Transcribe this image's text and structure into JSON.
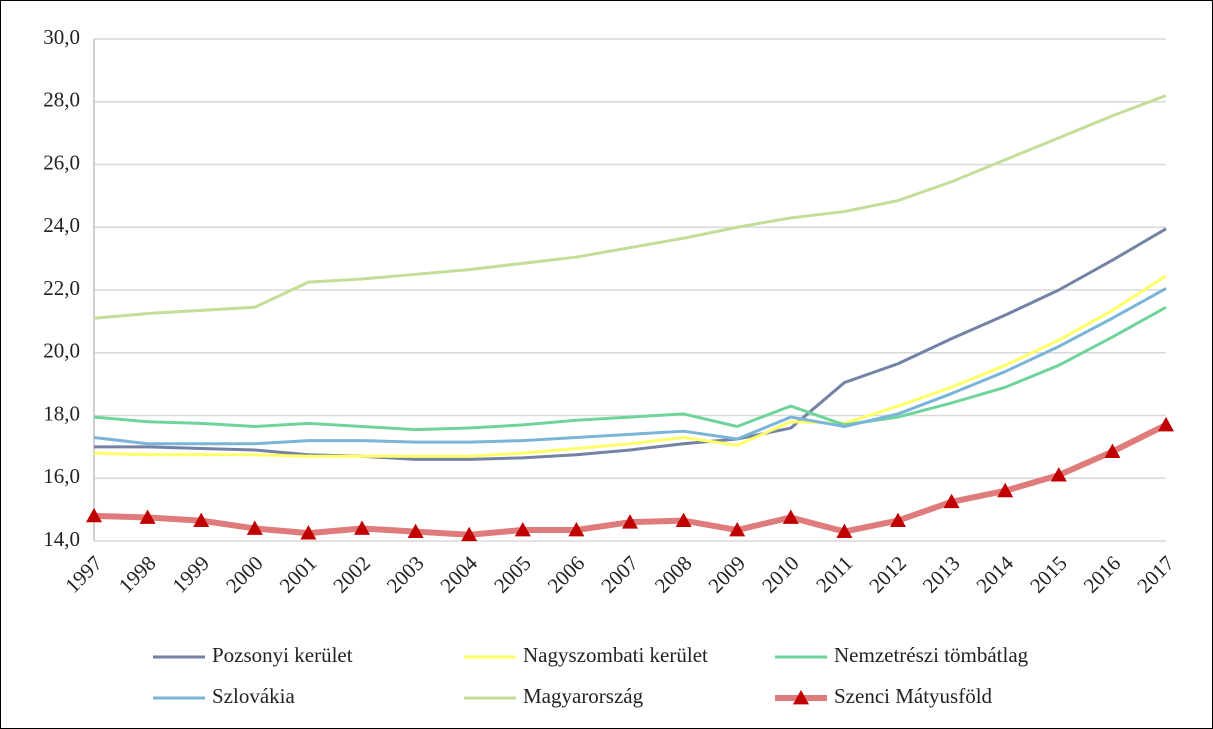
{
  "chart_data": {
    "type": "line",
    "categories": [
      "1997",
      "1998",
      "1999",
      "2000",
      "2001",
      "2002",
      "2003",
      "2004",
      "2005",
      "2006",
      "2007",
      "2008",
      "2009",
      "2010",
      "2011",
      "2012",
      "2013",
      "2014",
      "2015",
      "2016",
      "2017"
    ],
    "ylim": [
      14,
      30
    ],
    "yticks": [
      {
        "value": 14,
        "label": "14,0"
      },
      {
        "value": 16,
        "label": "16,0"
      },
      {
        "value": 18,
        "label": "18,0"
      },
      {
        "value": 20,
        "label": "20,0"
      },
      {
        "value": 22,
        "label": "22,0"
      },
      {
        "value": 24,
        "label": "24,0"
      },
      {
        "value": 26,
        "label": "26,0"
      },
      {
        "value": 28,
        "label": "28,0"
      },
      {
        "value": 30,
        "label": "30,0"
      }
    ],
    "grid": true,
    "series": [
      {
        "name": "Pozsonyi kerület",
        "color": "#7482a6",
        "values": [
          17.0,
          17.0,
          16.95,
          16.9,
          16.75,
          16.7,
          16.6,
          16.6,
          16.65,
          16.75,
          16.9,
          17.1,
          17.25,
          17.6,
          19.05,
          19.65,
          20.45,
          21.2,
          22.0,
          22.95,
          23.95
        ]
      },
      {
        "name": "Nagyszombati kerület",
        "color": "#ffff66",
        "values": [
          16.8,
          16.75,
          16.75,
          16.75,
          16.7,
          16.7,
          16.7,
          16.7,
          16.8,
          16.95,
          17.1,
          17.3,
          17.05,
          17.8,
          17.75,
          18.3,
          18.9,
          19.6,
          20.4,
          21.35,
          22.45
        ]
      },
      {
        "name": "Nemzetrészi tömbátlag",
        "color": "#6fd49b",
        "values": [
          17.95,
          17.8,
          17.75,
          17.65,
          17.75,
          17.65,
          17.55,
          17.6,
          17.7,
          17.85,
          17.95,
          18.05,
          17.65,
          18.3,
          17.7,
          17.95,
          18.4,
          18.9,
          19.6,
          20.5,
          21.45
        ]
      },
      {
        "name": "Szlovákia",
        "color": "#7ab4d8",
        "values": [
          17.3,
          17.1,
          17.1,
          17.1,
          17.2,
          17.2,
          17.15,
          17.15,
          17.2,
          17.3,
          17.4,
          17.5,
          17.25,
          17.95,
          17.65,
          18.05,
          18.7,
          19.4,
          20.2,
          21.1,
          22.05
        ]
      },
      {
        "name": "Magyarország",
        "color": "#c4de9a",
        "values": [
          21.1,
          21.25,
          21.35,
          21.45,
          22.25,
          22.35,
          22.5,
          22.65,
          22.85,
          23.05,
          23.35,
          23.65,
          24.0,
          24.3,
          24.5,
          24.85,
          25.45,
          26.15,
          26.85,
          27.55,
          28.2
        ]
      },
      {
        "name": "Szenci Mátyusföld",
        "color": "#e07b7b",
        "marker": "triangle",
        "marker_color": "#c00000",
        "values": [
          14.8,
          14.75,
          14.65,
          14.4,
          14.25,
          14.4,
          14.3,
          14.2,
          14.35,
          14.35,
          14.6,
          14.65,
          14.35,
          14.75,
          14.3,
          14.65,
          15.25,
          15.6,
          16.1,
          16.85,
          17.7
        ]
      }
    ]
  }
}
